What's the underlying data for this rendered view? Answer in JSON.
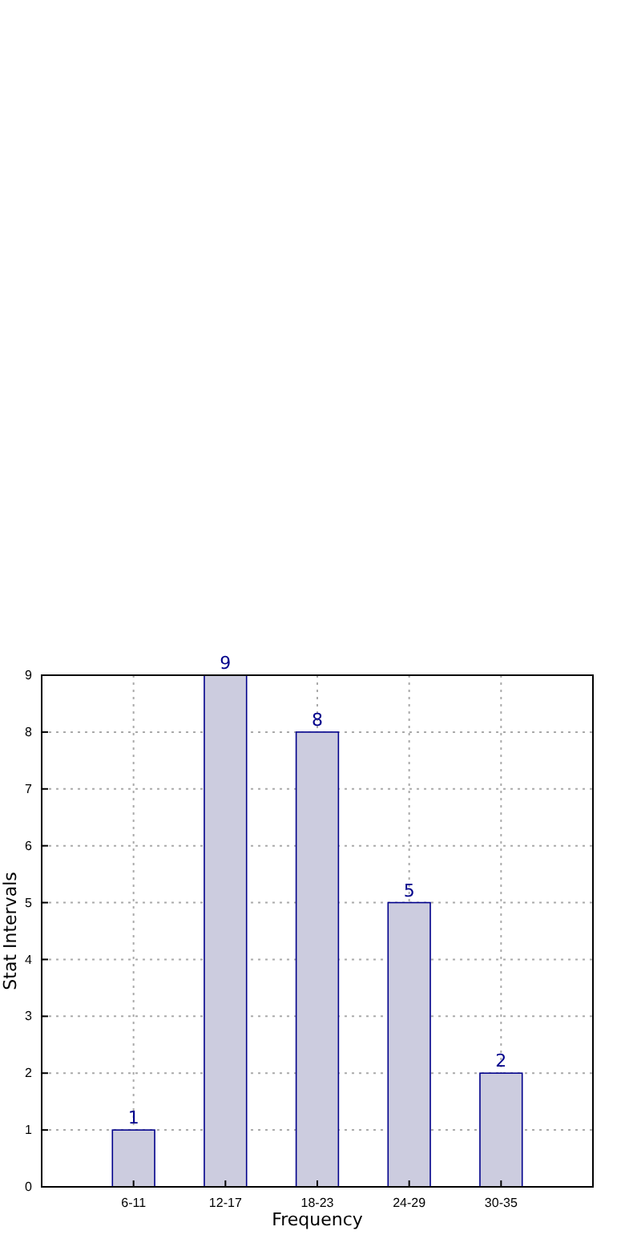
{
  "chart_data": {
    "type": "bar",
    "categories": [
      "6-11",
      "12-17",
      "18-23",
      "24-29",
      "30-35"
    ],
    "values": [
      1,
      9,
      8,
      5,
      2
    ],
    "color": "#ccccdf",
    "data_labels": true,
    "xlabel": "Frequency",
    "ylabel": "Stat Intervals",
    "ylim": [
      0,
      9
    ],
    "yticks": [
      0,
      1,
      2,
      3,
      4,
      5,
      6,
      7,
      8,
      9
    ],
    "grid": true
  }
}
